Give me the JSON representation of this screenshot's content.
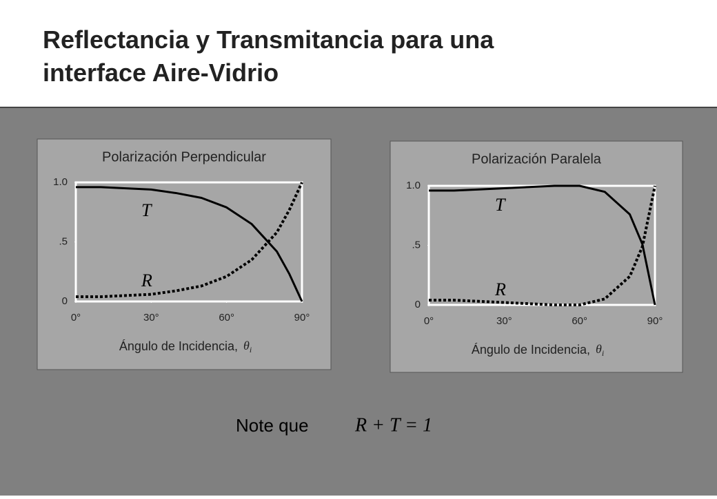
{
  "title": "Reflectancia y Transmitancia para una interface Aire-Vidrio",
  "note": {
    "label": "Note que",
    "equation": "R + T = 1"
  },
  "chart_data": [
    {
      "type": "line",
      "title": "Polarización Perpendicular",
      "xlabel": "Ángulo de Incidencia,",
      "xlabel_symbol": "θ",
      "xlabel_subscript": "i",
      "x": [
        0,
        10,
        20,
        30,
        40,
        50,
        60,
        70,
        80,
        85,
        90
      ],
      "series": [
        {
          "name": "T",
          "color": "#000000",
          "style": "solid",
          "values": [
            0.96,
            0.96,
            0.95,
            0.94,
            0.91,
            0.87,
            0.79,
            0.65,
            0.42,
            0.23,
            0
          ]
        },
        {
          "name": "R",
          "color": "#000000",
          "style": "dotted",
          "values": [
            0.04,
            0.04,
            0.05,
            0.06,
            0.09,
            0.13,
            0.21,
            0.35,
            0.58,
            0.77,
            1.0
          ]
        }
      ],
      "xlim": [
        0,
        90
      ],
      "ylim": [
        0,
        1
      ],
      "xticks": [
        {
          "value": 0,
          "label": "0°"
        },
        {
          "value": 30,
          "label": "30°"
        },
        {
          "value": 60,
          "label": "60°"
        },
        {
          "value": 90,
          "label": "90°"
        }
      ],
      "yticks": [
        0,
        {
          "value": 0.5,
          "label": ".5"
        },
        {
          "value": 1,
          "label": "1.0"
        }
      ]
    },
    {
      "type": "line",
      "title": "Polarización Paralela",
      "xlabel": "Ángulo de Incidencia,",
      "xlabel_symbol": "θ",
      "xlabel_subscript": "i",
      "x": [
        0,
        10,
        20,
        30,
        40,
        50,
        56,
        60,
        70,
        80,
        85,
        90
      ],
      "series": [
        {
          "name": "T",
          "color": "#000000",
          "style": "solid",
          "values": [
            0.96,
            0.96,
            0.97,
            0.98,
            0.99,
            1,
            1,
            1,
            0.95,
            0.76,
            0.51,
            0
          ]
        },
        {
          "name": "R",
          "color": "#000000",
          "style": "dotted",
          "values": [
            0.04,
            0.04,
            0.03,
            0.02,
            0.01,
            0,
            0,
            0,
            0.05,
            0.24,
            0.49,
            1.0
          ]
        }
      ],
      "xlim": [
        0,
        90
      ],
      "ylim": [
        0,
        1
      ],
      "xticks": [
        {
          "value": 0,
          "label": "0°"
        },
        {
          "value": 30,
          "label": "30°"
        },
        {
          "value": 60,
          "label": "60°"
        },
        {
          "value": 90,
          "label": "90°"
        }
      ],
      "yticks": [
        0,
        {
          "value": 0.5,
          "label": ".5"
        },
        {
          "value": 1,
          "label": "1.0"
        }
      ]
    }
  ]
}
